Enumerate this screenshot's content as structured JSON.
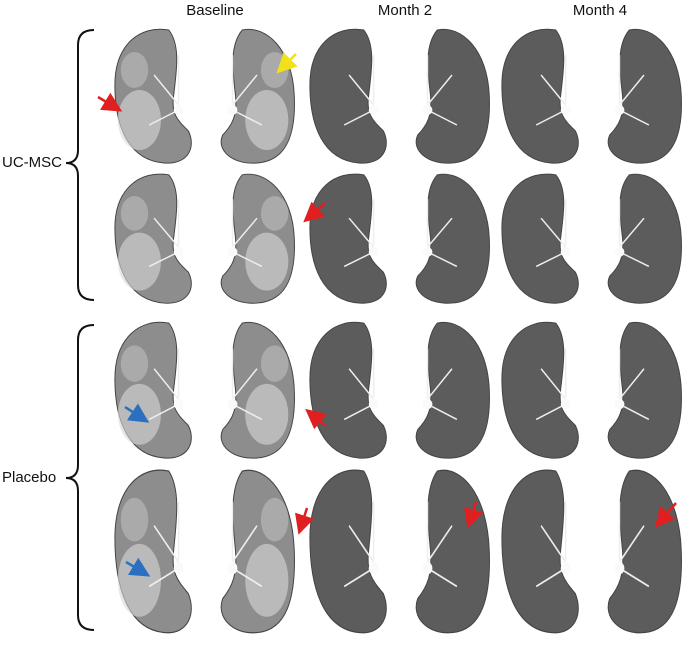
{
  "column_headers": [
    "Baseline",
    "Month 2",
    "Month 4"
  ],
  "row_groups": [
    "UC-MSC",
    "Placebo"
  ]
}
